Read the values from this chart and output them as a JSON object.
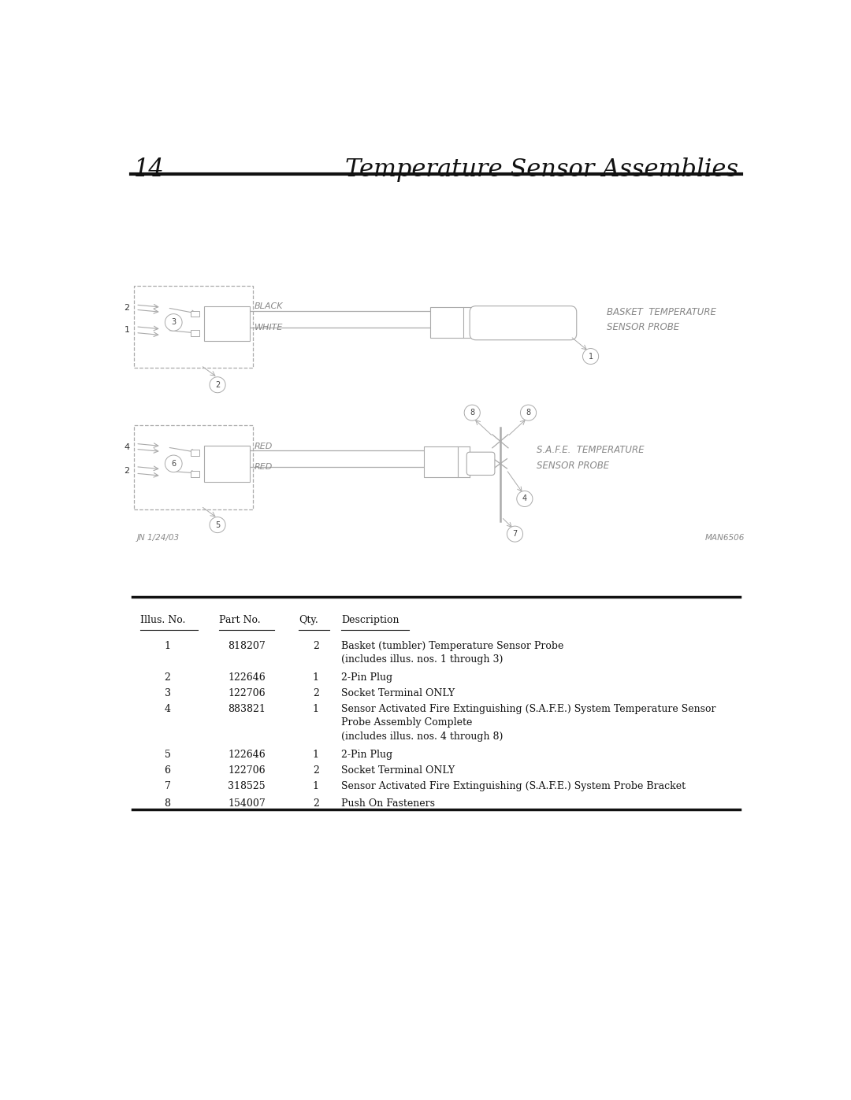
{
  "page_number": "14",
  "page_title": "Temperature Sensor Assemblies",
  "bg_color": "#ffffff",
  "diagram_color": "#aaaaaa",
  "text_color": "#333333",
  "label_color": "#888888",
  "table_headers": [
    "Illus. No.",
    "Part No.",
    "Qty.",
    "Description"
  ],
  "table_rows": [
    [
      "1",
      "818207",
      "2",
      "Basket (tumbler) Temperature Sensor Probe\n(includes illus. nos. 1 through 3)"
    ],
    [
      "2",
      "122646",
      "1",
      "2-Pin Plug"
    ],
    [
      "3",
      "122706",
      "2",
      "Socket Terminal ONLY"
    ],
    [
      "4",
      "883821",
      "1",
      "Sensor Activated Fire Extinguishing (S.A.F.E.) System Temperature Sensor\nProbe Assembly Complete\n(includes illus. nos. 4 through 8)"
    ],
    [
      "5",
      "122646",
      "1",
      "2-Pin Plug"
    ],
    [
      "6",
      "122706",
      "2",
      "Socket Terminal ONLY"
    ],
    [
      "7",
      "318525",
      "1",
      "Sensor Activated Fire Extinguishing (S.A.F.E.) System Probe Bracket"
    ],
    [
      "8",
      "154007",
      "2",
      "Push On Fasteners"
    ]
  ],
  "date_label": "JN 1/24/03",
  "man_label": "MAN6506"
}
